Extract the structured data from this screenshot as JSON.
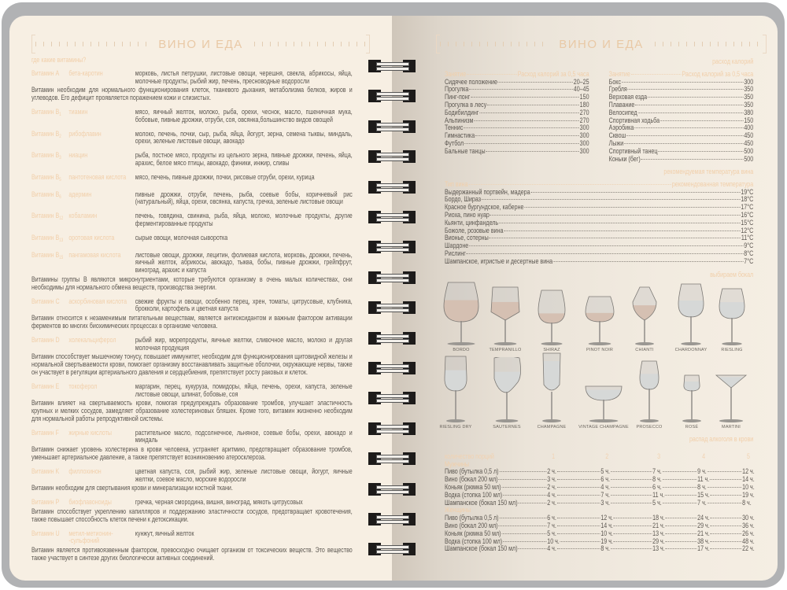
{
  "header": {
    "title_left": "ВИНО И ЕДА",
    "title_right": "ВИНО И ЕДА"
  },
  "vitamins": {
    "heading": "где какие витамины?",
    "items": [
      {
        "name": "Витамин A",
        "sub": "",
        "compound": "бета-каротин",
        "foods": "морковь, листья петрушки, листовые овощи, черешня, свекла, абрикосы, яйца, молочные продукты, рыбий жир, печень, пресноводные водоросли",
        "desc": "Витамин необходим для нормального функционирования клеток, тканевого дыхания, метаболизма белков, жиров и углеводов. Его дефицит проявляется поражением кожи и слизистых."
      },
      {
        "name": "Витамин B",
        "sub": "1",
        "compound": "тиамин",
        "foods": "мясо, яичный желток, молоко, рыба, орехи, чеснок, масло, пшеничная мука, бобовые, пивные дрожжи, отруби, соя, овсянка,большинство видов овощей",
        "desc": ""
      },
      {
        "name": "Витамин B",
        "sub": "2",
        "compound": "рибофлавин",
        "foods": "молоко, печень, почки, сыр, рыба, яйца, йогурт, зерна, семена тыквы, миндаль, орехи, зеленые листовые овощи, авокадо",
        "desc": ""
      },
      {
        "name": "Витамин B",
        "sub": "3",
        "compound": "ниацин",
        "foods": "рыба, постное мясо, продукты из цельного зерна, пивные дрожжи, печень, яйца, арахис, белое мясо птицы, авокадо, финики, инжир, сливы",
        "desc": ""
      },
      {
        "name": "Витамин B",
        "sub": "5",
        "compound": "пантотеновая кислота",
        "foods": "мясо, печень, пивные дрожжи, почки, рисовые отруби, орехи, курица",
        "desc": ""
      },
      {
        "name": "Витамин B",
        "sub": "6",
        "compound": "адермин",
        "foods": "пивные дрожжи, отруби, печень, рыба, соевые бобы, коричневый рис (натуральный), яйца, орехи, овсянка, капуста, гречка, зеленые листовые овощи",
        "desc": ""
      },
      {
        "name": "Витамин B",
        "sub": "12",
        "compound": "кобаламин",
        "foods": "печень, говядина, свинина, рыба, яйца, молоко, молочные продукты, другие ферментированные продукты",
        "desc": ""
      },
      {
        "name": "Витамин B",
        "sub": "13",
        "compound": "оротовая кислота",
        "foods": "сырые овощи, молочная сыворотка",
        "desc": ""
      },
      {
        "name": "Витамин B",
        "sub": "15",
        "compound": "пангамовая кислота",
        "foods": "листовые овощи, дрожжи, лецитин, фолиевая кислота, морковь, дрожжи, печень, яичный желток, абрикосы, авокадо, тыква, бобы, пивные дрожжи, грейпфрут, виноград, арахис и капуста",
        "desc": "Витамины группы B являются микронутриентами, которые требуются организму в очень малых количествах, они необходимы для нормального обмена веществ, производства энергии."
      },
      {
        "name": "Витамин C",
        "sub": "",
        "compound": "аскорбиновая кислота",
        "foods": "свежие фрукты и овощи, особенно перец, хрен, томаты, цитрусовые, клубника, брокколи, картофель и цветная капуста",
        "desc": "Витамин относится к незаменимым питательным веществам, является антиоксидантом и важным фактором активации ферментов во многих биохимических процессах в организме человека."
      },
      {
        "name": "Витамин D",
        "sub": "",
        "compound": "холекальциферол",
        "foods": "рыбий жир, морепродукты, яичные желтки, сливочное масло, молоко и другая молочная продукция",
        "desc": "Витамин способствует мышечному тонусу, повышает иммунитет, необходим для функционирования щитовидной железы и нормальной свертываемости крови, помогает организму восстанавливать защитные оболочки, окружающие нервы, также он участвует в регуляции артериального давления и сердцебиения, препятствует росту раковых и клеток."
      },
      {
        "name": "Витамин E",
        "sub": "",
        "compound": "токоферол",
        "foods": "маргарин, перец, кукуруза, помидоры, яйца, печень, орехи, капуста, зеленые листовые овощи, шпинат, бобовые, соя",
        "desc": "Витамин влияет на свертываемость крови, помогая предупреждать образование тромбов, улучшает эластичность крупных и мелких сосудов, замедляет образование холестериновых бляшек. Кроме того, витамин жизненно необходим для нормальной работы репродуктивной системы."
      },
      {
        "name": "Витамин F",
        "sub": "",
        "compound": "жирные кислоты",
        "foods": "растительное масло, подсолнечное, льняное, соевые бобы, орехи, авокадо и миндаль",
        "desc": "Витамин снижает уровень холестерина в крови человека, устраняет аритмию, предотвращает образование тромбов, уменьшает артериальное давление, а также препятствует возникновению атеросклероза."
      },
      {
        "name": "Витамин K",
        "sub": "",
        "compound": "филлохинон",
        "foods": "цветная капуста, соя, рыбий жир, зеленые листовые овощи, йогурт, яичные желтки, соевое масло, морские водоросли",
        "desc": "Витамин необходим для свертывания крови и минерализации костной ткани."
      },
      {
        "name": "Витамин P",
        "sub": "",
        "compound": "биофлавоноиды",
        "foods": "гречка, черная смородина, вишня, виноград, мякоть цитрусовых",
        "desc": "Витамин способствует укреплению капилляров и поддержанию эластичности сосудов, предотвращает кровотечения, также повышает способность клеток печени к детоксикации."
      },
      {
        "name": "Витамин U",
        "sub": "",
        "compound": "метил-метионин- -сульфоний",
        "foods": "кунжут, яичный желток",
        "desc": "Витамин является противоязвенным фактором, превосходно очищает организм от токсических веществ. Это вещество также участвует в синтезе других биологически активных соединений."
      }
    ]
  },
  "calories": {
    "heading": "расход калорий",
    "col_activity": "Занятие",
    "col_value": "Расход калорий за 0,5 часа",
    "left": [
      {
        "activity": "Сидячее положение",
        "value": "20–25"
      },
      {
        "activity": "Прогулка",
        "value": "40–45"
      },
      {
        "activity": "Пинг-понг",
        "value": "150"
      },
      {
        "activity": "Прогулка в лесу",
        "value": "180"
      },
      {
        "activity": "Бодибилдинг",
        "value": "270"
      },
      {
        "activity": "Альпинизм",
        "value": "270"
      },
      {
        "activity": "Теннис",
        "value": "300"
      },
      {
        "activity": "Гимнастика",
        "value": "300"
      },
      {
        "activity": "Футбол",
        "value": "300"
      },
      {
        "activity": "Бальные танцы",
        "value": "300"
      }
    ],
    "right": [
      {
        "activity": "Бокс",
        "value": "300"
      },
      {
        "activity": "Гребля",
        "value": "350"
      },
      {
        "activity": "Верховая езда",
        "value": "350"
      },
      {
        "activity": "Плавание",
        "value": "350"
      },
      {
        "activity": "Велосипед",
        "value": "380"
      },
      {
        "activity": "Спортивная ходьба",
        "value": "150"
      },
      {
        "activity": "Аэробика",
        "value": "400"
      },
      {
        "activity": "Сквош",
        "value": "450"
      },
      {
        "activity": "Лыжи",
        "value": "450"
      },
      {
        "activity": "Спортивный танец",
        "value": "500"
      },
      {
        "activity": "Коньки (бег)",
        "value": "500"
      }
    ]
  },
  "temperature": {
    "heading": "рекомендуемая температура вина",
    "col_type": "Тип вина",
    "col_temp": "рекомендованная температура",
    "rows": [
      {
        "wine": "Выдержанный портвейн, мадера",
        "temp": "19°C"
      },
      {
        "wine": "Бордо, Шираз",
        "temp": "18°C"
      },
      {
        "wine": "Красное бургундское, каберне",
        "temp": "17°C"
      },
      {
        "wine": "Риоха, пино нуар",
        "temp": "16°C"
      },
      {
        "wine": "Кьянти, цинфандель",
        "temp": "15°C"
      },
      {
        "wine": "Божоле, розовые вина",
        "temp": "12°C"
      },
      {
        "wine": "Вионье, сотерны",
        "temp": "11°C"
      },
      {
        "wine": "Шардоне",
        "temp": "9°C"
      },
      {
        "wine": "Рислинг",
        "temp": "8°C"
      },
      {
        "wine": "Шампанское, игристые и десертные вина",
        "temp": "7°C"
      }
    ]
  },
  "glasses": {
    "heading": "выбираем бокал",
    "wine_colors": {
      "red": "#e2c2ad",
      "white": "#e4e7e5"
    },
    "items": [
      {
        "name": "BORDO",
        "wine": "red",
        "fill_level": 0.55
      },
      {
        "name": "TEMPRANILLO",
        "wine": "red",
        "fill_level": 0.55
      },
      {
        "name": "SHIRAZ",
        "wine": "red",
        "fill_level": 0.3
      },
      {
        "name": "PINOT NOIR",
        "wine": "red",
        "fill_level": 0.35
      },
      {
        "name": "CHIANTI",
        "wine": "red",
        "fill_level": 0.45
      },
      {
        "name": "CHARDONNAY",
        "wine": "white",
        "fill_level": 0.5
      },
      {
        "name": "RIESLING",
        "wine": "white",
        "fill_level": 0.55
      },
      {
        "name": "RIESLING DRY",
        "wine": "white",
        "fill_level": 0.6
      },
      {
        "name": "SAUTERNES",
        "wine": "white",
        "fill_level": 0.6
      },
      {
        "name": "CHAMPAGNE",
        "wine": "white",
        "fill_level": 0.8
      },
      {
        "name": "VINTAGE CHAMPAGNE",
        "wine": "white",
        "fill_level": 0.75
      },
      {
        "name": "PROSECCO",
        "wine": "white",
        "fill_level": 0.55
      },
      {
        "name": "ROSÉ",
        "wine": "white",
        "fill_level": 0.6
      },
      {
        "name": "MARTINI",
        "wine": "white",
        "fill_level": 0.85
      }
    ]
  },
  "alcohol": {
    "heading": "распад алкоголя в крови",
    "col_portions": "количество порций",
    "portions": [
      "1",
      "2",
      "3",
      "4",
      "5"
    ],
    "groups": [
      {
        "label": "Мужчины",
        "rows": [
          {
            "drink": "Пиво (бутылка 0,5 л)",
            "hours": [
              "2 ч.",
              "5 ч.",
              "7 ч.",
              "9 ч.",
              "12 ч."
            ]
          },
          {
            "drink": "Вино (бокал 200 мл)",
            "hours": [
              "3 ч.",
              "6 ч.",
              "8 ч.",
              "11 ч.",
              "14 ч."
            ]
          },
          {
            "drink": "Коньяк (рюмка 50 мл)",
            "hours": [
              "2 ч.",
              "4 ч.",
              "6 ч.",
              "8 ч.",
              "10 ч."
            ]
          },
          {
            "drink": "Водка (стопка 100 мл)",
            "hours": [
              "4 ч.",
              "7 ч.",
              "11 ч.",
              "15 ч.",
              "19 ч."
            ]
          },
          {
            "drink": "Шампанское (бокал 150 мл)",
            "hours": [
              "2 ч.",
              "3 ч.",
              "5 ч.",
              "7 ч.",
              "8 ч."
            ]
          }
        ]
      },
      {
        "label": "Женщины",
        "rows": [
          {
            "drink": "Пиво (бутылка 0,5 л)",
            "hours": [
              "6 ч.",
              "12 ч.",
              "18 ч.",
              "24 ч.",
              "30 ч."
            ]
          },
          {
            "drink": "Вино (бокал 200 мл)",
            "hours": [
              "7 ч.",
              "14 ч.",
              "21 ч.",
              "29 ч.",
              "36 ч."
            ]
          },
          {
            "drink": "Коньяк (рюмка 50 мл)",
            "hours": [
              "5 ч.",
              "10 ч.",
              "13 ч.",
              "21 ч.",
              "26 ч."
            ]
          },
          {
            "drink": "Водка (стопка 100 мл)",
            "hours": [
              "10 ч.",
              "19 ч.",
              "29 ч.",
              "38 ч.",
              "48 ч."
            ]
          },
          {
            "drink": "Шампанское (бокал 150 мл)",
            "hours": [
              "4 ч.",
              "8 ч.",
              "13 ч.",
              "17 ч.",
              "22 ч."
            ]
          }
        ]
      }
    ]
  }
}
